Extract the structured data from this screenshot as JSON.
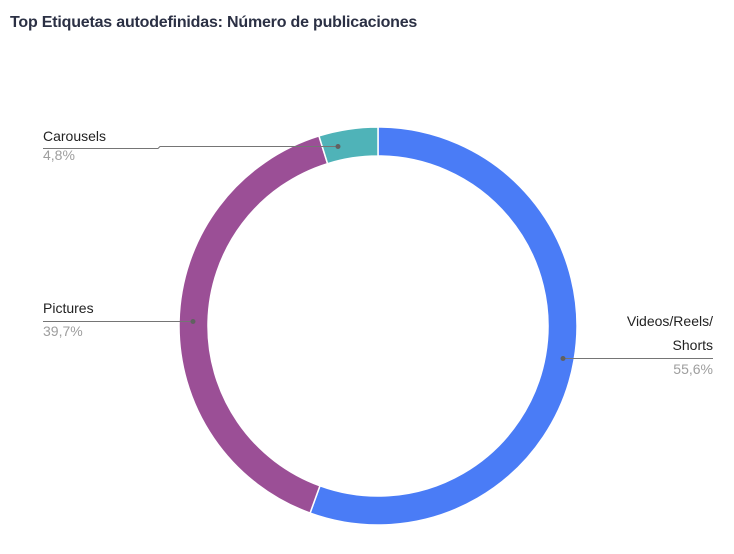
{
  "title": "Top Etiquetas autodefinidas: Número de publicaciones",
  "labels": {
    "carousels": {
      "name": "Carousels",
      "pct": "4,8%"
    },
    "pictures": {
      "name": "Pictures",
      "pct": "39,7%"
    },
    "videos": {
      "name_line1": "Videos/Reels/",
      "name_line2": "Shorts",
      "pct": "55,6%"
    }
  },
  "colors": {
    "videos": "#4a7cf6",
    "pictures": "#9b4f96",
    "carousels": "#4fb3b8"
  },
  "chart_data": {
    "type": "pie",
    "subtype": "donut",
    "title": "Top Etiquetas autodefinidas: Número de publicaciones",
    "categories": [
      "Videos/Reels/Shorts",
      "Pictures",
      "Carousels"
    ],
    "values": [
      55.6,
      39.7,
      4.8
    ],
    "value_labels": [
      "55,6%",
      "39,7%",
      "4,8%"
    ],
    "colors": [
      "#4a7cf6",
      "#9b4f96",
      "#4fb3b8"
    ],
    "start_angle_deg": 0,
    "direction": "clockwise",
    "legend": "leader-line labels"
  }
}
